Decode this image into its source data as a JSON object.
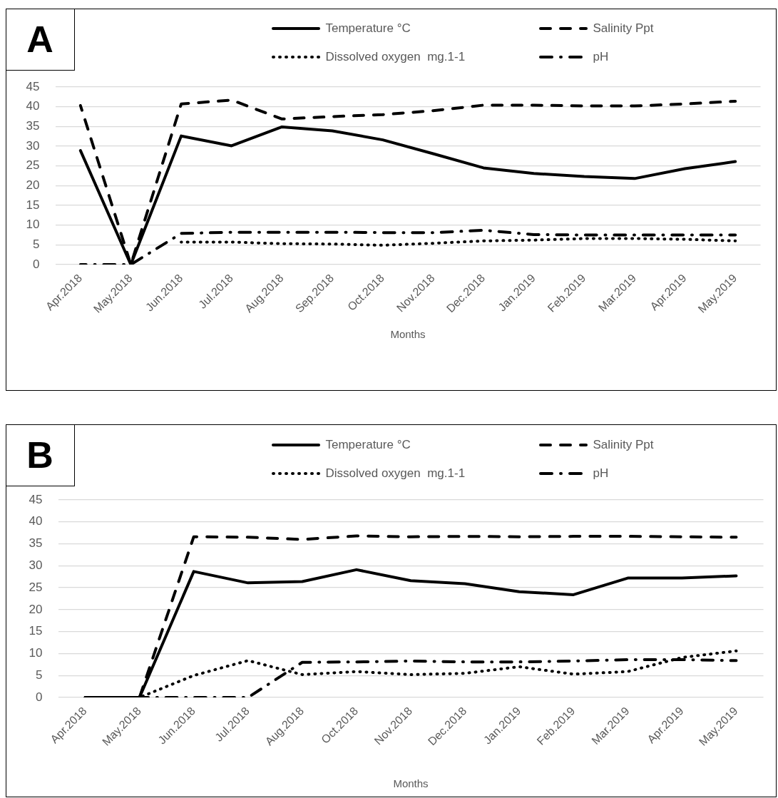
{
  "chart_data": [
    {
      "type": "line",
      "title": "A",
      "xlabel": "Months",
      "categories": [
        "Apr.2018",
        "May.2018",
        "Jun.2018",
        "Jul.2018",
        "Aug.2018",
        "Sep.2018",
        "Oct.2018",
        "Nov.2018",
        "Dec.2018",
        "Jan.2019",
        "Feb.2019",
        "Mar.2019",
        "Apr.2019",
        "May.2019"
      ],
      "series": [
        {
          "name": "Temperature °C",
          "color": "#000000",
          "line_style": "solid",
          "values": [
            28.9,
            0,
            32.6,
            30.1,
            34.9,
            33.9,
            31.6,
            28.1,
            24.5,
            23.1,
            22.3,
            21.8,
            24.3,
            26.1
          ]
        },
        {
          "name": "Salinity Ppt",
          "color": "#000000",
          "line_style": "dashed",
          "values": [
            40.3,
            0,
            40.7,
            41.7,
            36.9,
            37.5,
            38.0,
            39.0,
            40.4,
            40.4,
            40.2,
            40.2,
            40.7,
            41.4
          ]
        },
        {
          "name": "Dissolved oxygen  mg.1-1",
          "color": "#000000",
          "line_style": "dotted",
          "values": [
            null,
            null,
            5.7,
            5.7,
            5.3,
            5.2,
            4.9,
            5.4,
            6.0,
            6.2,
            6.6,
            6.6,
            6.4,
            6.0
          ]
        },
        {
          "name": "pH",
          "color": "#000000",
          "line_style": "dashdot",
          "values": [
            0,
            0,
            7.9,
            8.2,
            8.2,
            8.2,
            8.1,
            8.1,
            8.7,
            7.6,
            7.5,
            7.5,
            7.5,
            7.5
          ]
        }
      ],
      "ylim": [
        0,
        45
      ],
      "yticks": [
        0,
        5,
        10,
        15,
        20,
        25,
        30,
        35,
        40,
        45
      ],
      "grid": "y",
      "legend": "top"
    },
    {
      "type": "line",
      "title": "B",
      "xlabel": "Months",
      "categories": [
        "Apr.2018",
        "May.2018",
        "Jun.2018",
        "Jul.2018",
        "Aug.2018",
        "Oct.2018",
        "Nov.2018",
        "Dec.2018",
        "Jan.2019",
        "Feb.2019",
        "Mar.2019",
        "Apr.2019",
        "May.2019"
      ],
      "series": [
        {
          "name": "Temperature °C",
          "color": "#000000",
          "line_style": "solid",
          "values": [
            0,
            0,
            28.7,
            26.1,
            26.4,
            29.1,
            26.6,
            25.9,
            24.1,
            23.4,
            27.2,
            27.2,
            27.7
          ]
        },
        {
          "name": "Salinity Ppt",
          "color": "#000000",
          "line_style": "dashed",
          "values": [
            0,
            0,
            36.6,
            36.5,
            36.0,
            36.8,
            36.6,
            36.7,
            36.6,
            36.7,
            36.7,
            36.6,
            36.5
          ]
        },
        {
          "name": "Dissolved oxygen  mg.1-1",
          "color": "#000000",
          "line_style": "dotted",
          "values": [
            0,
            0,
            5.0,
            8.4,
            5.2,
            5.9,
            5.2,
            5.5,
            7.0,
            5.3,
            5.9,
            9.1,
            10.6
          ]
        },
        {
          "name": "pH",
          "color": "#000000",
          "line_style": "dashdot",
          "values": [
            0,
            0,
            0,
            0,
            8.0,
            8.1,
            8.3,
            8.1,
            8.1,
            8.3,
            8.6,
            8.6,
            8.4
          ]
        }
      ],
      "ylim": [
        0,
        45
      ],
      "yticks": [
        0,
        5,
        10,
        15,
        20,
        25,
        30,
        35,
        40,
        45
      ],
      "grid": "y",
      "legend": "top"
    }
  ]
}
